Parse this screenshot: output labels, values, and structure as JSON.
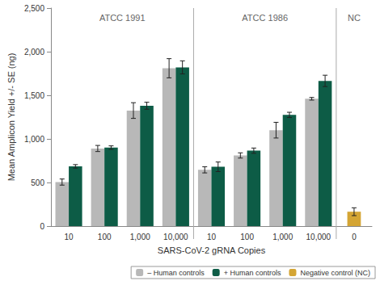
{
  "chart_data": {
    "type": "bar",
    "x_label": "SARS-CoV-2 gRNA Copies",
    "y_label": "Mean Amplicon Yield +/- SE (ng)",
    "categories": [
      "10",
      "100",
      "1,000",
      "10,000",
      "10",
      "100",
      "1,000",
      "10,000",
      "0"
    ],
    "groups": [
      {
        "label": "ATCC 1991",
        "size": 4
      },
      {
        "label": "ATCC 1986",
        "size": 4
      },
      {
        "label": "NC",
        "size": 1
      }
    ],
    "series": [
      {
        "name": "– Human controls",
        "color": "#b8b8b8",
        "values": [
          505,
          890,
          1325,
          1810,
          645,
          810,
          1100,
          1460,
          null
        ],
        "errors": [
          35,
          35,
          90,
          110,
          35,
          30,
          90,
          15,
          null
        ]
      },
      {
        "name": "+ Human controls",
        "color": "#0d5c46",
        "values": [
          685,
          900,
          1380,
          1820,
          680,
          865,
          1275,
          1665,
          null
        ],
        "errors": [
          20,
          20,
          40,
          75,
          55,
          30,
          30,
          65,
          null
        ]
      },
      {
        "name": "Negative control (NC)",
        "color": "#d4a534",
        "values": [
          null,
          null,
          null,
          null,
          null,
          null,
          null,
          null,
          165
        ],
        "errors": [
          null,
          null,
          null,
          null,
          null,
          null,
          null,
          null,
          45
        ]
      }
    ],
    "ylim": [
      0,
      2500
    ],
    "yticks": [
      0,
      500,
      {
        "value": 1000,
        "label": "1,000"
      },
      {
        "value": 1500,
        "label": "1,500"
      },
      {
        "value": 2000,
        "label": "2,000"
      },
      {
        "value": 2500,
        "label": "2,500"
      }
    ],
    "grid": false,
    "legend": "bottom"
  }
}
